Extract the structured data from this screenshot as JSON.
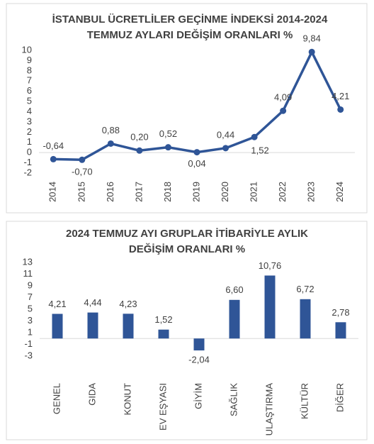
{
  "chart_data": [
    {
      "type": "line",
      "title": [
        "İSTANBUL ÜCRETLİLER GEÇİNME İNDEKSİ 2014-2024",
        "TEMMUZ AYLARI DEĞİŞİM ORANLARI %"
      ],
      "categories": [
        "2014",
        "2015",
        "2016",
        "2017",
        "2018",
        "2019",
        "2020",
        "2021",
        "2022",
        "2023",
        "2024"
      ],
      "values": [
        -0.64,
        -0.7,
        0.88,
        0.2,
        0.52,
        0.04,
        0.44,
        1.52,
        4.09,
        9.84,
        4.21
      ],
      "value_labels": [
        "-0,64",
        "-0,70",
        "0,88",
        "0,20",
        "0,52",
        "0,04",
        "0,44",
        "1,52",
        "4,09",
        "9,84",
        "4,21"
      ],
      "color": "#2f5597",
      "ylim": [
        -2,
        10
      ],
      "yticks": [
        -2,
        -1,
        0,
        1,
        2,
        3,
        4,
        5,
        6,
        7,
        8,
        9,
        10
      ]
    },
    {
      "type": "bar",
      "title": [
        "2024 TEMMUZ AYI GRUPLAR İTİBARİYLE AYLIK",
        "DEĞİŞİM ORANLARI %"
      ],
      "categories": [
        "GENEL",
        "GIDA",
        "KONUT",
        "EV EŞYASI",
        "GİYİM",
        "SAĞLIK",
        "ULAŞTIRMA",
        "KÜLTÜR",
        "DİĞER"
      ],
      "values": [
        4.21,
        4.44,
        4.23,
        1.52,
        -2.04,
        6.6,
        10.76,
        6.72,
        2.78
      ],
      "value_labels": [
        "4,21",
        "4,44",
        "4,23",
        "1,52",
        "-2,04",
        "6,60",
        "10,76",
        "6,72",
        "2,78"
      ],
      "color": "#2f5597",
      "ylim": [
        -3,
        13
      ],
      "yticks": [
        -3,
        -1,
        1,
        3,
        5,
        7,
        9,
        11,
        13
      ]
    }
  ]
}
